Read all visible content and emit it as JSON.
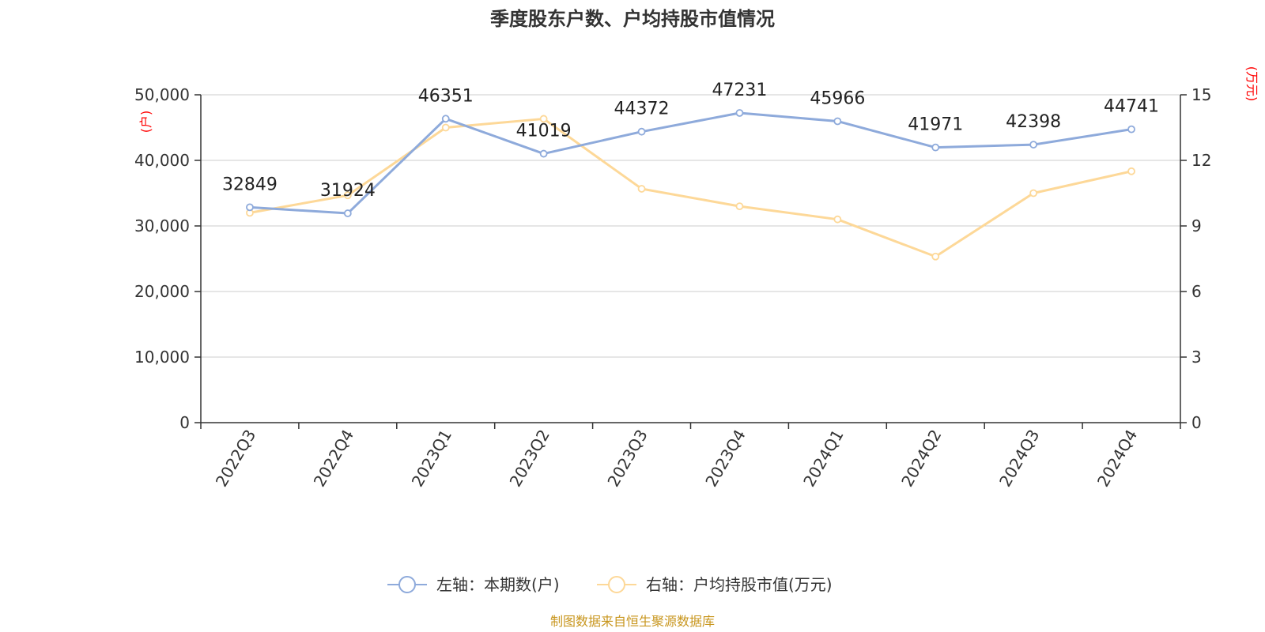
{
  "chart_data": {
    "type": "line",
    "title": "季度股东户数、户均持股市值情况",
    "categories": [
      "2022Q3",
      "2022Q4",
      "2023Q1",
      "2023Q2",
      "2023Q3",
      "2023Q4",
      "2024Q1",
      "2024Q2",
      "2024Q3",
      "2024Q4"
    ],
    "left_axis": {
      "unit": "(户)",
      "ylim": [
        0,
        50000
      ],
      "ticks": [
        "0",
        "10,000",
        "20,000",
        "30,000",
        "40,000",
        "50,000"
      ]
    },
    "right_axis": {
      "unit": "(万元)",
      "ylim": [
        0,
        15
      ],
      "ticks": [
        "0",
        "3",
        "6",
        "9",
        "12",
        "15"
      ]
    },
    "series": [
      {
        "name": "左轴：本期数(户)",
        "axis": "left",
        "color": "#8eaadb",
        "values": [
          32849,
          31924,
          46351,
          41019,
          44372,
          47231,
          45966,
          41971,
          42398,
          44741
        ],
        "labels": [
          "32849",
          "31924",
          "46351",
          "41019",
          "44372",
          "47231",
          "45966",
          "41971",
          "42398",
          "44741"
        ]
      },
      {
        "name": "右轴：户均持股市值(万元)",
        "axis": "right",
        "color": "#fdd898",
        "values": [
          9.6,
          10.4,
          13.5,
          13.9,
          10.7,
          9.9,
          9.3,
          7.6,
          10.5,
          11.5
        ]
      }
    ],
    "grid": true,
    "legend_position": "bottom-center",
    "source": "制图数据来自恒生聚源数据库"
  }
}
